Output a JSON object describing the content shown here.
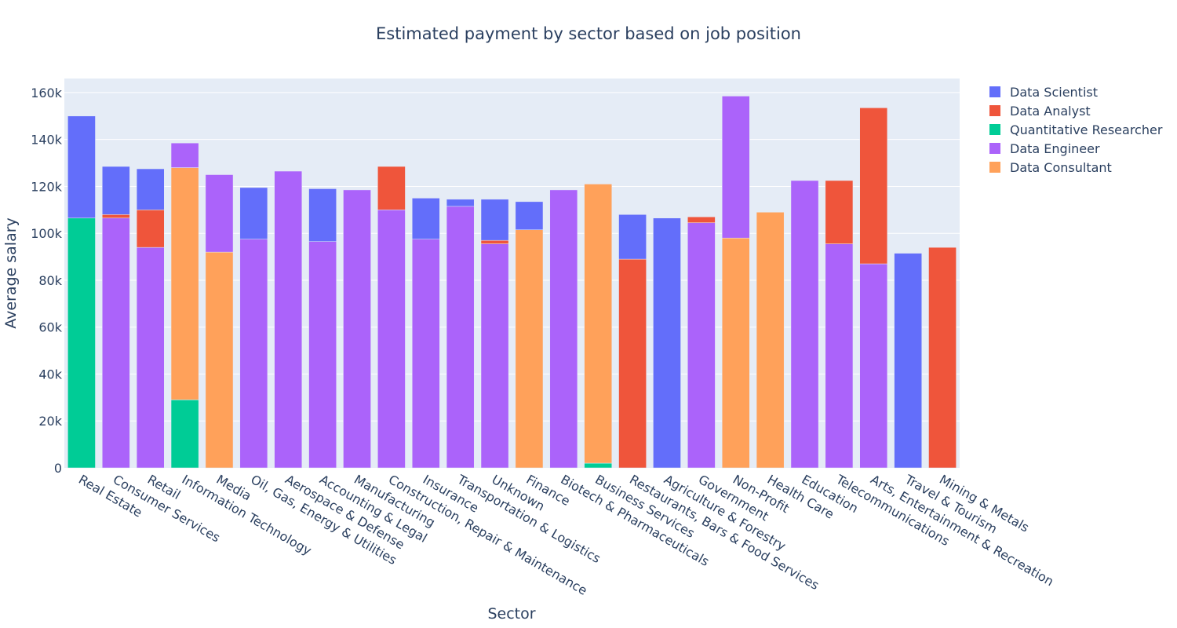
{
  "chart_data": {
    "type": "bar",
    "stacked": true,
    "title": "Estimated payment by sector based on job position",
    "xlabel": "Sector",
    "ylabel": "Average salary",
    "ylim": [
      0,
      166000
    ],
    "yticks": [
      0,
      20000,
      40000,
      60000,
      80000,
      100000,
      120000,
      140000,
      160000
    ],
    "ytick_labels": [
      "0",
      "20k",
      "40k",
      "60k",
      "80k",
      "100k",
      "120k",
      "140k",
      "160k"
    ],
    "grid": true,
    "legend_position": "top-right",
    "categories": [
      "Real Estate",
      "Consumer Services",
      "Retail",
      "Information Technology",
      "Media",
      "Oil, Gas, Energy & Utilities",
      "Aerospace & Defense",
      "Accounting & Legal",
      "Manufacturing",
      "Construction, Repair & Maintenance",
      "Insurance",
      "Transportation & Logistics",
      "Unknown",
      "Finance",
      "Biotech & Pharmaceuticals",
      "Business Services",
      "Restaurants, Bars & Food Services",
      "Agriculture & Forestry",
      "Government",
      "Non-Profit",
      "Health Care",
      "Education",
      "Telecommunications",
      "Arts, Entertainment & Recreation",
      "Travel & Tourism",
      "Mining & Metals"
    ],
    "stack_order": [
      "Quantitative Researcher",
      "Data Consultant",
      "Data Engineer",
      "Data Analyst",
      "Data Scientist"
    ],
    "series": [
      {
        "name": "Data Scientist",
        "color": "#636efa",
        "values": [
          43500,
          20500,
          17500,
          0,
          0,
          22000,
          0,
          22500,
          0,
          0,
          17500,
          3000,
          17500,
          12000,
          0,
          0,
          19000,
          106500,
          0,
          0,
          0,
          0,
          0,
          0,
          91500,
          0
        ]
      },
      {
        "name": "Data Analyst",
        "color": "#ef553b",
        "values": [
          0,
          1500,
          16000,
          0,
          0,
          0,
          0,
          0,
          0,
          18500,
          0,
          0,
          1500,
          0,
          0,
          0,
          89000,
          0,
          2500,
          0,
          0,
          0,
          27000,
          66500,
          0,
          94000
        ]
      },
      {
        "name": "Quantitative Researcher",
        "color": "#00cc96",
        "values": [
          106500,
          0,
          0,
          29000,
          0,
          0,
          0,
          0,
          0,
          0,
          0,
          0,
          0,
          0,
          0,
          2000,
          0,
          0,
          0,
          0,
          0,
          0,
          0,
          0,
          0,
          0
        ]
      },
      {
        "name": "Data Engineer",
        "color": "#ab63fa",
        "values": [
          0,
          106500,
          94000,
          10500,
          33000,
          97500,
          126500,
          96500,
          118500,
          110000,
          97500,
          111500,
          95500,
          0,
          118500,
          0,
          0,
          0,
          104500,
          60500,
          0,
          122500,
          95500,
          87000,
          0,
          0
        ]
      },
      {
        "name": "Data Consultant",
        "color": "#ffa15a",
        "values": [
          0,
          0,
          0,
          99000,
          92000,
          0,
          0,
          0,
          0,
          0,
          0,
          0,
          0,
          101500,
          0,
          119000,
          0,
          0,
          0,
          98000,
          109000,
          0,
          0,
          0,
          0,
          0
        ]
      }
    ]
  },
  "legend": {
    "items": [
      {
        "name": "Data Scientist",
        "color": "#636efa"
      },
      {
        "name": "Data Analyst",
        "color": "#ef553b"
      },
      {
        "name": "Quantitative Researcher",
        "color": "#00cc96"
      },
      {
        "name": "Data Engineer",
        "color": "#ab63fa"
      },
      {
        "name": "Data Consultant",
        "color": "#ffa15a"
      }
    ]
  },
  "colors": {
    "plot_background": "#e5ecf6",
    "grid": "#ffffff",
    "text": "#2a3f5f"
  }
}
